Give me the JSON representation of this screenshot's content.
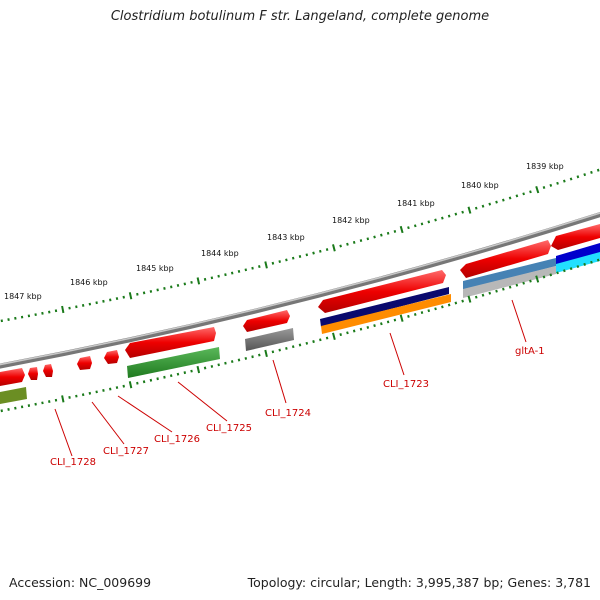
{
  "title": "Clostridium botulinum F str. Langeland, complete genome",
  "footer": {
    "accession": "Accession: NC_009699",
    "summary": "Topology: circular; Length: 3,995,387 bp; Genes: 3,781"
  },
  "kbp_ticks": [
    "1839 kbp",
    "1840 kbp",
    "1841 kbp",
    "1842 kbp",
    "1843 kbp",
    "1844 kbp",
    "1845 kbp",
    "1846 kbp",
    "1847 kbp"
  ],
  "gene_labels": [
    "gltA-1",
    "CLI_1723",
    "CLI_1724",
    "CLI_1725",
    "CLI_1726",
    "CLI_1727",
    "CLI_1728"
  ],
  "colors": {
    "forward_cds": "#ee0000",
    "backbone": "#7a7a7a",
    "tick_green": "#1a7a1a",
    "gene_label": "#cc0000",
    "green_feature": "#228b22",
    "navy_feature": "#0a0a6e",
    "orange_feature": "#ff8c00",
    "steel_feature": "#4682b4",
    "gray_feature": "#666666",
    "silver_feature": "#b8b8b8",
    "blue_feature": "#0000cc",
    "cyan_feature": "#22e0ff",
    "olive_feature": "#6b8e23"
  }
}
